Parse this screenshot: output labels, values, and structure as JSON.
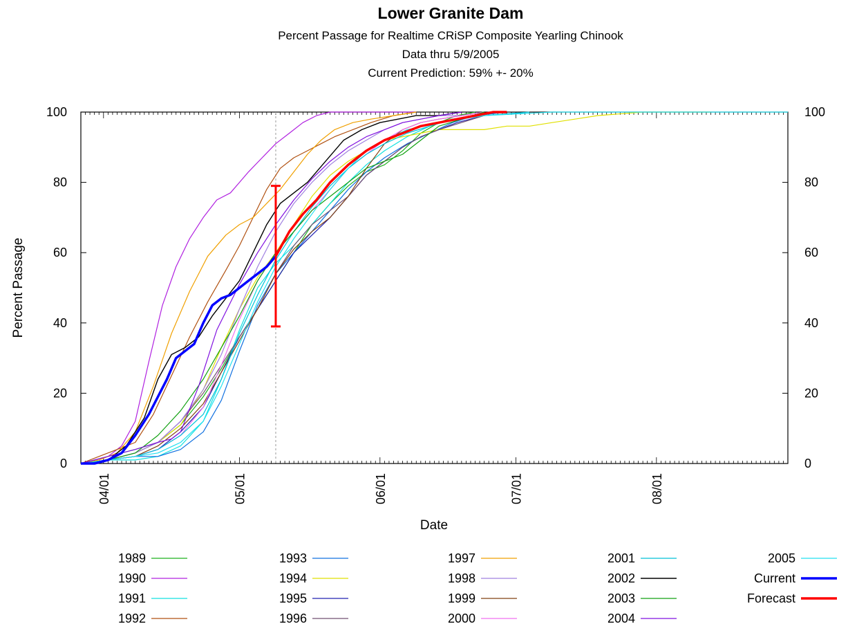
{
  "chart_data": {
    "type": "line",
    "title": "Lower Granite Dam",
    "subtitle_lines": [
      "Percent Passage for Realtime CRiSP Composite Yearling Chinook",
      "Data thru 5/9/2005",
      "Current Prediction: 59% +- 20%"
    ],
    "xlabel": "Date",
    "ylabel": "Percent Passage",
    "x_unit": "day_of_year",
    "x_range": [
      86,
      242
    ],
    "y_range": [
      0,
      100
    ],
    "x_ticks": [
      {
        "day": 91,
        "label": "04/01"
      },
      {
        "day": 121,
        "label": "05/01"
      },
      {
        "day": 152,
        "label": "06/01"
      },
      {
        "day": 182,
        "label": "07/01"
      },
      {
        "day": 213,
        "label": "08/01"
      }
    ],
    "y_ticks": [
      0,
      20,
      40,
      60,
      80,
      100
    ],
    "grid": false,
    "legend_position": "bottom",
    "data_thru_day": 129,
    "prediction": {
      "day": 129,
      "value": 59,
      "low": 39,
      "high": 79
    },
    "series": [
      {
        "name": "1989",
        "color": "#1cb01c",
        "width": 1.2,
        "x": [
          86,
          92,
          98,
          103,
          108,
          113,
          117,
          121,
          125,
          129,
          133,
          137,
          141,
          145,
          149,
          153,
          157,
          161,
          165,
          169,
          173
        ],
        "y": [
          0,
          2,
          4,
          6,
          11,
          19,
          27,
          36,
          44,
          52,
          60,
          68,
          74,
          79,
          83,
          85,
          89,
          94,
          97,
          99,
          100
        ]
      },
      {
        "name": "1990",
        "color": "#b020e0",
        "width": 1.2,
        "x": [
          86,
          92,
          95,
          98,
          101,
          104,
          107,
          110,
          113,
          116,
          119,
          121,
          123,
          126,
          129,
          132,
          135,
          138,
          141,
          145,
          150,
          155,
          160
        ],
        "y": [
          0,
          2,
          5,
          12,
          29,
          45,
          56,
          64,
          70,
          75,
          77,
          80,
          83,
          87,
          91,
          94,
          97,
          99,
          100,
          100,
          100,
          100,
          100
        ]
      },
      {
        "name": "1991",
        "color": "#10e0e0",
        "width": 1.2,
        "x": [
          86,
          92,
          98,
          103,
          108,
          113,
          117,
          121,
          125,
          129,
          133,
          137,
          141,
          145,
          149,
          153,
          158,
          163,
          168,
          173,
          180
        ],
        "y": [
          0,
          1,
          1,
          2,
          5,
          12,
          24,
          38,
          50,
          57,
          62,
          68,
          74,
          80,
          85,
          89,
          93,
          96,
          98,
          99,
          100
        ]
      },
      {
        "name": "1992",
        "color": "#b05010",
        "width": 1.2,
        "x": [
          86,
          90,
          94,
          98,
          102,
          106,
          110,
          114,
          118,
          121,
          124,
          127,
          130,
          133,
          136,
          139,
          142,
          146,
          150,
          155,
          160
        ],
        "y": [
          0,
          2,
          4,
          6,
          14,
          25,
          36,
          46,
          55,
          62,
          70,
          78,
          84,
          87,
          89,
          91,
          93,
          95,
          97,
          99,
          100
        ]
      },
      {
        "name": "1993",
        "color": "#1070e0",
        "width": 1.2,
        "x": [
          86,
          92,
          98,
          103,
          108,
          113,
          117,
          121,
          125,
          129,
          133,
          137,
          141,
          145,
          149,
          153,
          158,
          163,
          168,
          173,
          180
        ],
        "y": [
          0,
          1,
          2,
          2,
          4,
          9,
          18,
          32,
          45,
          54,
          60,
          66,
          72,
          78,
          83,
          87,
          91,
          94,
          97,
          99,
          100
        ]
      },
      {
        "name": "1994",
        "color": "#e0e000",
        "width": 1.2,
        "x": [
          86,
          92,
          98,
          103,
          108,
          113,
          117,
          121,
          125,
          129,
          133,
          137,
          141,
          145,
          149,
          153,
          157,
          161,
          165,
          170,
          175,
          180,
          185,
          190,
          195,
          200,
          210,
          225
        ],
        "y": [
          0,
          1,
          3,
          6,
          11,
          21,
          33,
          44,
          53,
          60,
          68,
          76,
          82,
          86,
          89,
          92,
          93,
          94,
          95,
          95,
          95,
          96,
          96,
          97,
          98,
          99,
          100,
          100
        ]
      },
      {
        "name": "1995",
        "color": "#2020b0",
        "width": 1.2,
        "x": [
          86,
          92,
          98,
          103,
          108,
          113,
          117,
          121,
          125,
          129,
          133,
          137,
          141,
          145,
          149,
          153,
          157,
          161,
          165,
          169,
          175
        ],
        "y": [
          0,
          1,
          2,
          4,
          9,
          16,
          26,
          36,
          44,
          52,
          60,
          65,
          70,
          76,
          82,
          86,
          90,
          93,
          95,
          97,
          99
        ]
      },
      {
        "name": "1996",
        "color": "#705070",
        "width": 1.2,
        "x": [
          86,
          92,
          98,
          103,
          108,
          113,
          117,
          121,
          125,
          129,
          133,
          137,
          141,
          145,
          149,
          153,
          157,
          161,
          165,
          170,
          175
        ],
        "y": [
          0,
          1,
          3,
          6,
          12,
          20,
          28,
          36,
          44,
          54,
          62,
          68,
          72,
          76,
          82,
          86,
          90,
          93,
          95,
          97,
          99
        ]
      },
      {
        "name": "1997",
        "color": "#f0a000",
        "width": 1.2,
        "x": [
          86,
          90,
          94,
          98,
          102,
          106,
          110,
          114,
          118,
          121,
          124,
          127,
          130,
          133,
          136,
          139,
          142,
          146,
          150,
          155,
          160
        ],
        "y": [
          0,
          1,
          3,
          9,
          22,
          37,
          49,
          59,
          65,
          68,
          70,
          74,
          78,
          83,
          88,
          92,
          95,
          97,
          98,
          99,
          100
        ]
      },
      {
        "name": "1998",
        "color": "#a080e0",
        "width": 1.2,
        "x": [
          86,
          92,
          98,
          103,
          108,
          113,
          117,
          121,
          125,
          129,
          133,
          137,
          141,
          145,
          149,
          153,
          157,
          161,
          165,
          170,
          175
        ],
        "y": [
          0,
          1,
          3,
          6,
          12,
          21,
          31,
          44,
          56,
          66,
          74,
          80,
          85,
          89,
          92,
          95,
          97,
          98,
          99,
          99,
          100
        ]
      },
      {
        "name": "1999",
        "color": "#804010",
        "width": 1.2,
        "x": [
          86,
          92,
          98,
          103,
          108,
          113,
          117,
          121,
          125,
          129,
          133,
          137,
          141,
          145,
          149,
          153,
          157,
          161,
          165,
          170,
          175
        ],
        "y": [
          0,
          1,
          2,
          5,
          10,
          17,
          26,
          35,
          44,
          54,
          61,
          66,
          70,
          76,
          84,
          91,
          95,
          97,
          98,
          99,
          100
        ]
      },
      {
        "name": "2000",
        "color": "#f070f0",
        "width": 1.2,
        "x": [
          86,
          92,
          98,
          103,
          108,
          113,
          117,
          121,
          125,
          129,
          133,
          137,
          141,
          145,
          149,
          153,
          157,
          161,
          165,
          170,
          175
        ],
        "y": [
          0,
          1,
          2,
          4,
          8,
          16,
          28,
          41,
          52,
          60,
          66,
          72,
          78,
          84,
          88,
          92,
          95,
          97,
          98,
          99,
          100
        ]
      },
      {
        "name": "2001",
        "color": "#00c0d8",
        "width": 1.2,
        "x": [
          86,
          92,
          98,
          103,
          108,
          113,
          117,
          121,
          125,
          129,
          133,
          137,
          141,
          145,
          149,
          153,
          158,
          163,
          168,
          175,
          185
        ],
        "y": [
          0,
          1,
          2,
          4,
          8,
          14,
          24,
          37,
          48,
          58,
          66,
          73,
          79,
          84,
          88,
          91,
          94,
          96,
          98,
          99,
          100
        ]
      },
      {
        "name": "2002",
        "color": "#000000",
        "width": 1.4,
        "x": [
          86,
          92,
          96,
          100,
          103,
          106,
          109,
          112,
          115,
          118,
          121,
          124,
          127,
          130,
          133,
          136,
          140,
          144,
          148,
          152,
          156,
          160,
          165,
          170
        ],
        "y": [
          0,
          1,
          5,
          13,
          24,
          31,
          33,
          36,
          42,
          47,
          52,
          60,
          68,
          74,
          77,
          80,
          86,
          92,
          95,
          97,
          98,
          99,
          99,
          100
        ]
      },
      {
        "name": "2003",
        "color": "#10a010",
        "width": 1.2,
        "x": [
          86,
          92,
          98,
          103,
          108,
          113,
          117,
          121,
          125,
          129,
          133,
          137,
          141,
          145,
          149,
          153,
          157,
          161,
          165,
          170,
          175
        ],
        "y": [
          0,
          1,
          3,
          8,
          15,
          24,
          33,
          42,
          52,
          60,
          66,
          72,
          76,
          80,
          84,
          86,
          88,
          92,
          96,
          98,
          100
        ]
      },
      {
        "name": "2004",
        "color": "#8010e0",
        "width": 1.2,
        "x": [
          86,
          92,
          98,
          103,
          106,
          108,
          112,
          116,
          121,
          125,
          129,
          133,
          137,
          141,
          145,
          149,
          153,
          157,
          161,
          165,
          170
        ],
        "y": [
          0,
          2,
          4,
          6,
          7,
          9,
          22,
          38,
          51,
          60,
          68,
          75,
          81,
          86,
          90,
          93,
          95,
          97,
          98,
          99,
          100
        ]
      },
      {
        "name": "2005",
        "color": "#20e0f0",
        "width": 1.2,
        "x": [
          86,
          92,
          98,
          103,
          108,
          113,
          117,
          121,
          125,
          129,
          133,
          137,
          141,
          145,
          149,
          153,
          158,
          165,
          175,
          190,
          205,
          220,
          242
        ],
        "y": [
          0,
          1,
          2,
          3,
          6,
          12,
          22,
          34,
          46,
          56,
          64,
          71,
          78,
          84,
          89,
          92,
          95,
          97,
          99,
          100,
          100,
          100,
          100
        ]
      },
      {
        "name": "Current",
        "color": "#0000ff",
        "width": 3.5,
        "x": [
          86,
          89,
          92,
          95,
          98,
          101,
          103,
          105,
          107,
          109,
          111,
          113,
          115,
          117,
          119,
          121,
          123,
          125,
          127,
          129
        ],
        "y": [
          0,
          0,
          1,
          3,
          8,
          14,
          19,
          24,
          30,
          32,
          34,
          40,
          45,
          47,
          48,
          50,
          52,
          54,
          56,
          59
        ]
      },
      {
        "name": "Forecast",
        "color": "#ff0000",
        "width": 3.5,
        "x": [
          129,
          132,
          135,
          138,
          141,
          145,
          149,
          153,
          157,
          161,
          165,
          169,
          173,
          177,
          180
        ],
        "y": [
          59,
          66,
          71,
          75,
          80,
          85,
          89,
          92,
          94,
          96,
          97,
          98,
          99,
          100,
          100
        ]
      }
    ],
    "legend_columns": [
      [
        "1989",
        "1990",
        "1991",
        "1992"
      ],
      [
        "1993",
        "1994",
        "1995",
        "1996"
      ],
      [
        "1997",
        "1998",
        "1999",
        "2000"
      ],
      [
        "2001",
        "2002",
        "2003",
        "2004"
      ],
      [
        "2005",
        "Current",
        "Forecast"
      ]
    ]
  }
}
